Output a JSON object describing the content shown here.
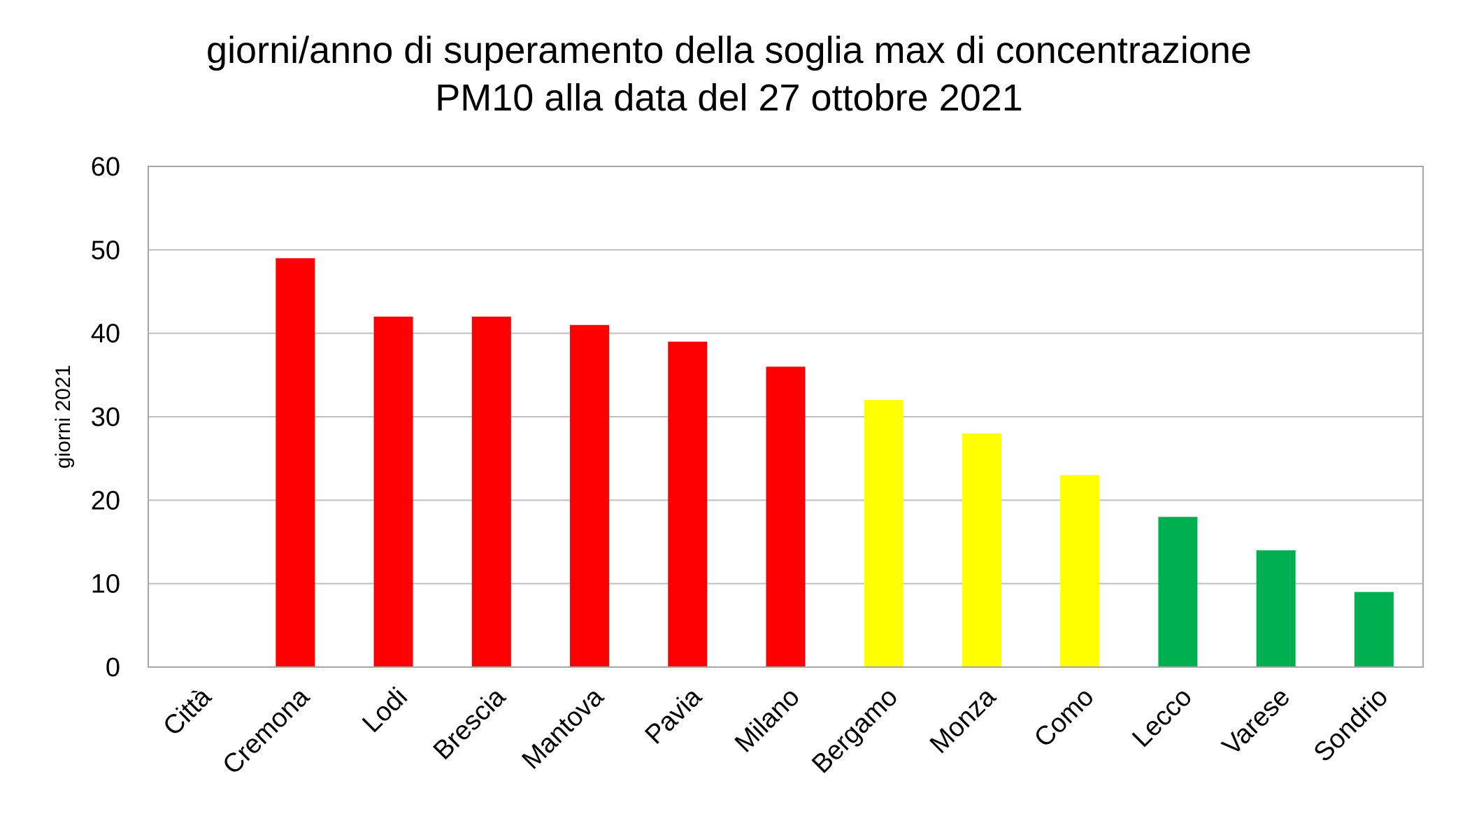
{
  "chart_data": {
    "type": "bar",
    "title_lines": [
      "giorni/anno di superamento della soglia max di concentrazione",
      "PM10 alla data del 27 ottobre 2021"
    ],
    "xlabel": "",
    "ylabel": "giorni 2021",
    "ylim": [
      0,
      60
    ],
    "yticks": [
      0,
      10,
      20,
      30,
      40,
      50,
      60
    ],
    "grid": true,
    "legend": "none",
    "categories": [
      "Città",
      "Cremona",
      "Lodi",
      "Brescia",
      "Mantova",
      "Pavia",
      "Milano",
      "Bergamo",
      "Monza",
      "Como",
      "Lecco",
      "Varese",
      "Sondrio"
    ],
    "values": [
      null,
      49,
      42,
      42,
      41,
      39,
      36,
      32,
      28,
      23,
      18,
      14,
      9
    ],
    "bar_colors": [
      "#ff0000",
      "#ff0000",
      "#ff0000",
      "#ff0000",
      "#ff0000",
      "#ff0000",
      "#ff0000",
      "#ffff00",
      "#ffff00",
      "#ffff00",
      "#00b050",
      "#00b050",
      "#00b050"
    ],
    "gridline_color": "#bfbfbf",
    "axis_color": "#a6a6a6"
  }
}
